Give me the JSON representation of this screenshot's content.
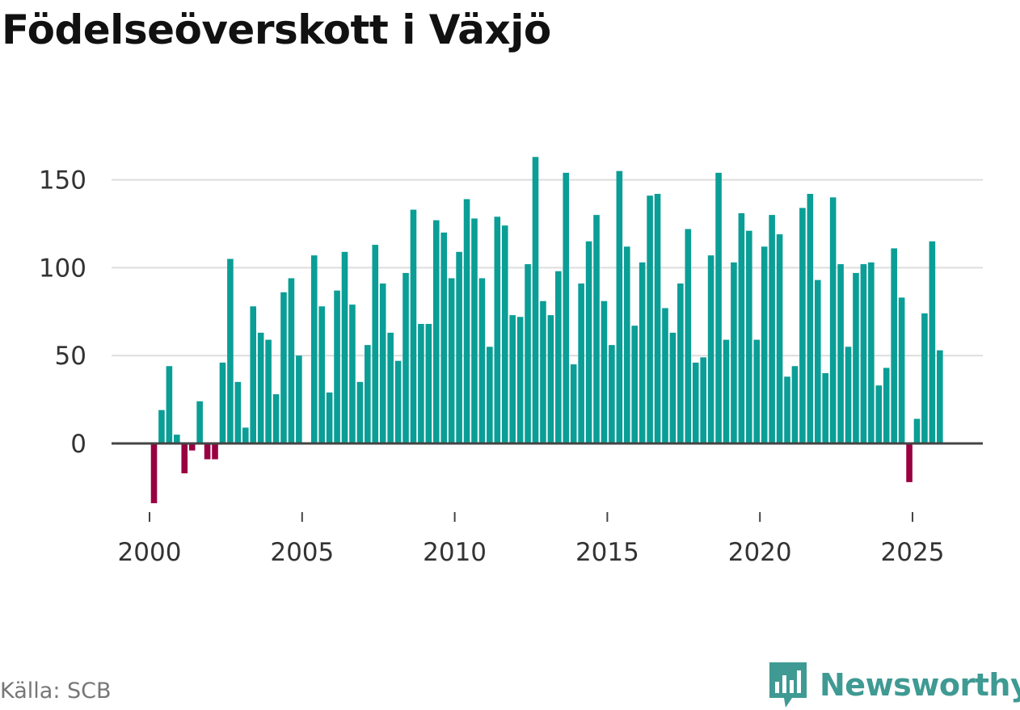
{
  "title": "Födelseöverskott i Växjö",
  "source": "Källa: SCB",
  "brand": {
    "name": "Newsworthy",
    "icon": "newsworthy-logo-icon"
  },
  "colors": {
    "positive": "#0a9e96",
    "negative": "#990041",
    "grid": "#dddddd",
    "axis": "#444444",
    "brand": "#3f9a93"
  },
  "chart_data": {
    "type": "bar",
    "title": "Födelseöverskott i Växjö",
    "xlabel": "",
    "ylabel": "",
    "ylim": [
      -40,
      170
    ],
    "yticks": [
      0,
      50,
      100,
      150
    ],
    "xticks": [
      "2000",
      "2005",
      "2010",
      "2015",
      "2020",
      "2025"
    ],
    "grid": true,
    "series": [
      {
        "name": "Födelseöverskott",
        "start_year": 2000,
        "values": [
          -34,
          19,
          44,
          5,
          -17,
          -4,
          24,
          -9,
          -9,
          46,
          105,
          35,
          9,
          78,
          63,
          59,
          28,
          86,
          94,
          50,
          0,
          107,
          78,
          29,
          87,
          109,
          79,
          35,
          56,
          113,
          91,
          63,
          47,
          97,
          133,
          68,
          68,
          127,
          120,
          94,
          109,
          139,
          128,
          94,
          55,
          129,
          124,
          73,
          72,
          102,
          163,
          81,
          73,
          98,
          154,
          45,
          91,
          115,
          130,
          81,
          56,
          155,
          112,
          67,
          103,
          141,
          142,
          77,
          63,
          91,
          122,
          46,
          49,
          107,
          154,
          59,
          103,
          131,
          121,
          59,
          112,
          130,
          119,
          38,
          44,
          134,
          142,
          93,
          40,
          140,
          102,
          55,
          97,
          102,
          103,
          33,
          43,
          111,
          83,
          -22,
          14,
          74,
          115,
          53
        ]
      }
    ]
  }
}
